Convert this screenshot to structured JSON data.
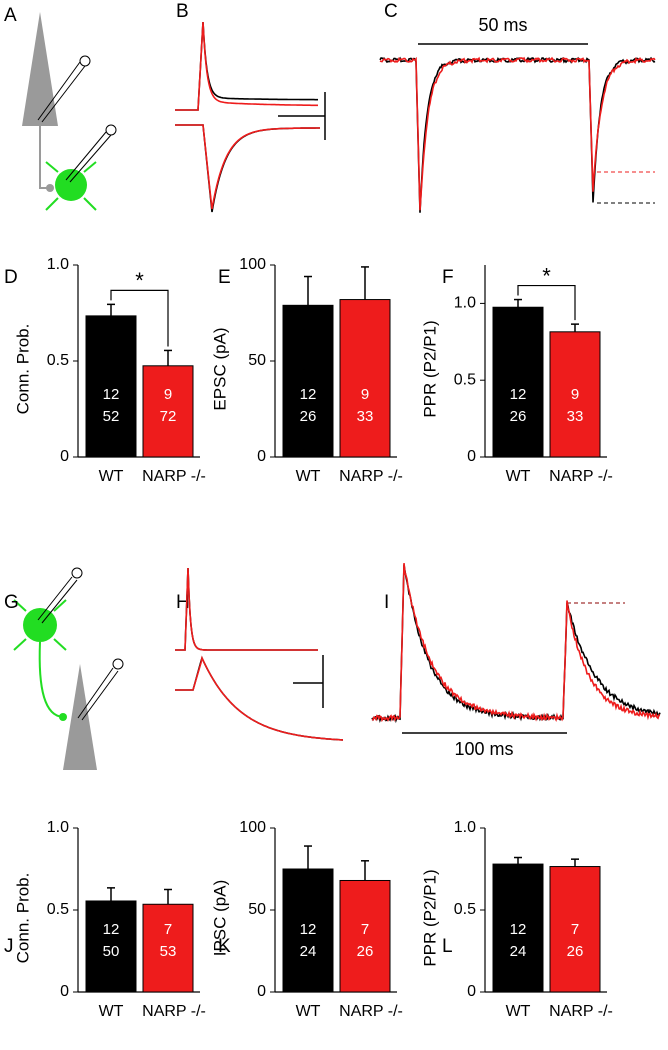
{
  "figure": {
    "panel_labels": [
      "A",
      "B",
      "C",
      "D",
      "E",
      "F",
      "G",
      "H",
      "I",
      "J",
      "K",
      "L"
    ],
    "scale_labels": [
      "50 ms",
      "100 ms"
    ]
  },
  "chart_data": [
    {
      "type": "bar",
      "ylabel": "Conn. Prob.",
      "categories": [
        "WT",
        "NARP -/-"
      ],
      "values": [
        0.735,
        0.475
      ],
      "errors": [
        0.06,
        0.08
      ],
      "colors": [
        "#000000",
        "#ee1c1c"
      ],
      "n_labels": [
        [
          "12",
          "52"
        ],
        [
          "9",
          "72"
        ]
      ],
      "significance": "*",
      "ylim": [
        0,
        1
      ],
      "yticks": [
        0,
        0.5,
        {
          "value": 1,
          "label": "1.0"
        }
      ]
    },
    {
      "type": "bar",
      "ylabel": "EPSC (pA)",
      "categories": [
        "WT",
        "NARP -/-"
      ],
      "values": [
        79,
        82
      ],
      "errors": [
        15,
        17
      ],
      "colors": [
        "#000000",
        "#ee1c1c"
      ],
      "n_labels": [
        [
          "12",
          "26"
        ],
        [
          "9",
          "33"
        ]
      ],
      "ylim": [
        0,
        100
      ],
      "yticks": [
        0,
        50,
        100
      ]
    },
    {
      "type": "bar",
      "ylabel": "PPR (P2/P1)",
      "categories": [
        "WT",
        "NARP -/-"
      ],
      "values": [
        0.975,
        0.815
      ],
      "errors": [
        0.05,
        0.05
      ],
      "colors": [
        "#000000",
        "#ee1c1c"
      ],
      "n_labels": [
        [
          "12",
          "26"
        ],
        [
          "9",
          "33"
        ]
      ],
      "significance": "*",
      "ylim": [
        0,
        1.25
      ],
      "yticks": [
        0,
        0.5,
        {
          "value": 1,
          "label": "1.0"
        }
      ]
    },
    {
      "type": "bar",
      "ylabel": "Conn. Prob.",
      "categories": [
        "WT",
        "NARP -/-"
      ],
      "values": [
        0.555,
        0.535
      ],
      "errors": [
        0.08,
        0.09
      ],
      "colors": [
        "#000000",
        "#ee1c1c"
      ],
      "n_labels": [
        [
          "12",
          "50"
        ],
        [
          "7",
          "53"
        ]
      ],
      "ylim": [
        0,
        1
      ],
      "yticks": [
        0,
        0.5,
        {
          "value": 1,
          "label": "1.0"
        }
      ]
    },
    {
      "type": "bar",
      "ylabel": "IPSC (pA)",
      "categories": [
        "WT",
        "NARP -/-"
      ],
      "values": [
        75,
        68
      ],
      "errors": [
        14,
        12
      ],
      "colors": [
        "#000000",
        "#ee1c1c"
      ],
      "n_labels": [
        [
          "12",
          "24"
        ],
        [
          "7",
          "26"
        ]
      ],
      "ylim": [
        0,
        100
      ],
      "yticks": [
        0,
        50,
        100
      ]
    },
    {
      "type": "bar",
      "ylabel": "PPR (P2/P1)",
      "categories": [
        "WT",
        "NARP -/-"
      ],
      "values": [
        0.78,
        0.765
      ],
      "errors": [
        0.04,
        0.045
      ],
      "colors": [
        "#000000",
        "#ee1c1c"
      ],
      "n_labels": [
        [
          "12",
          "24"
        ],
        [
          "7",
          "26"
        ]
      ],
      "ylim": [
        0,
        1
      ],
      "yticks": [
        0,
        0.5,
        {
          "value": 1,
          "label": "1.0"
        }
      ]
    }
  ]
}
